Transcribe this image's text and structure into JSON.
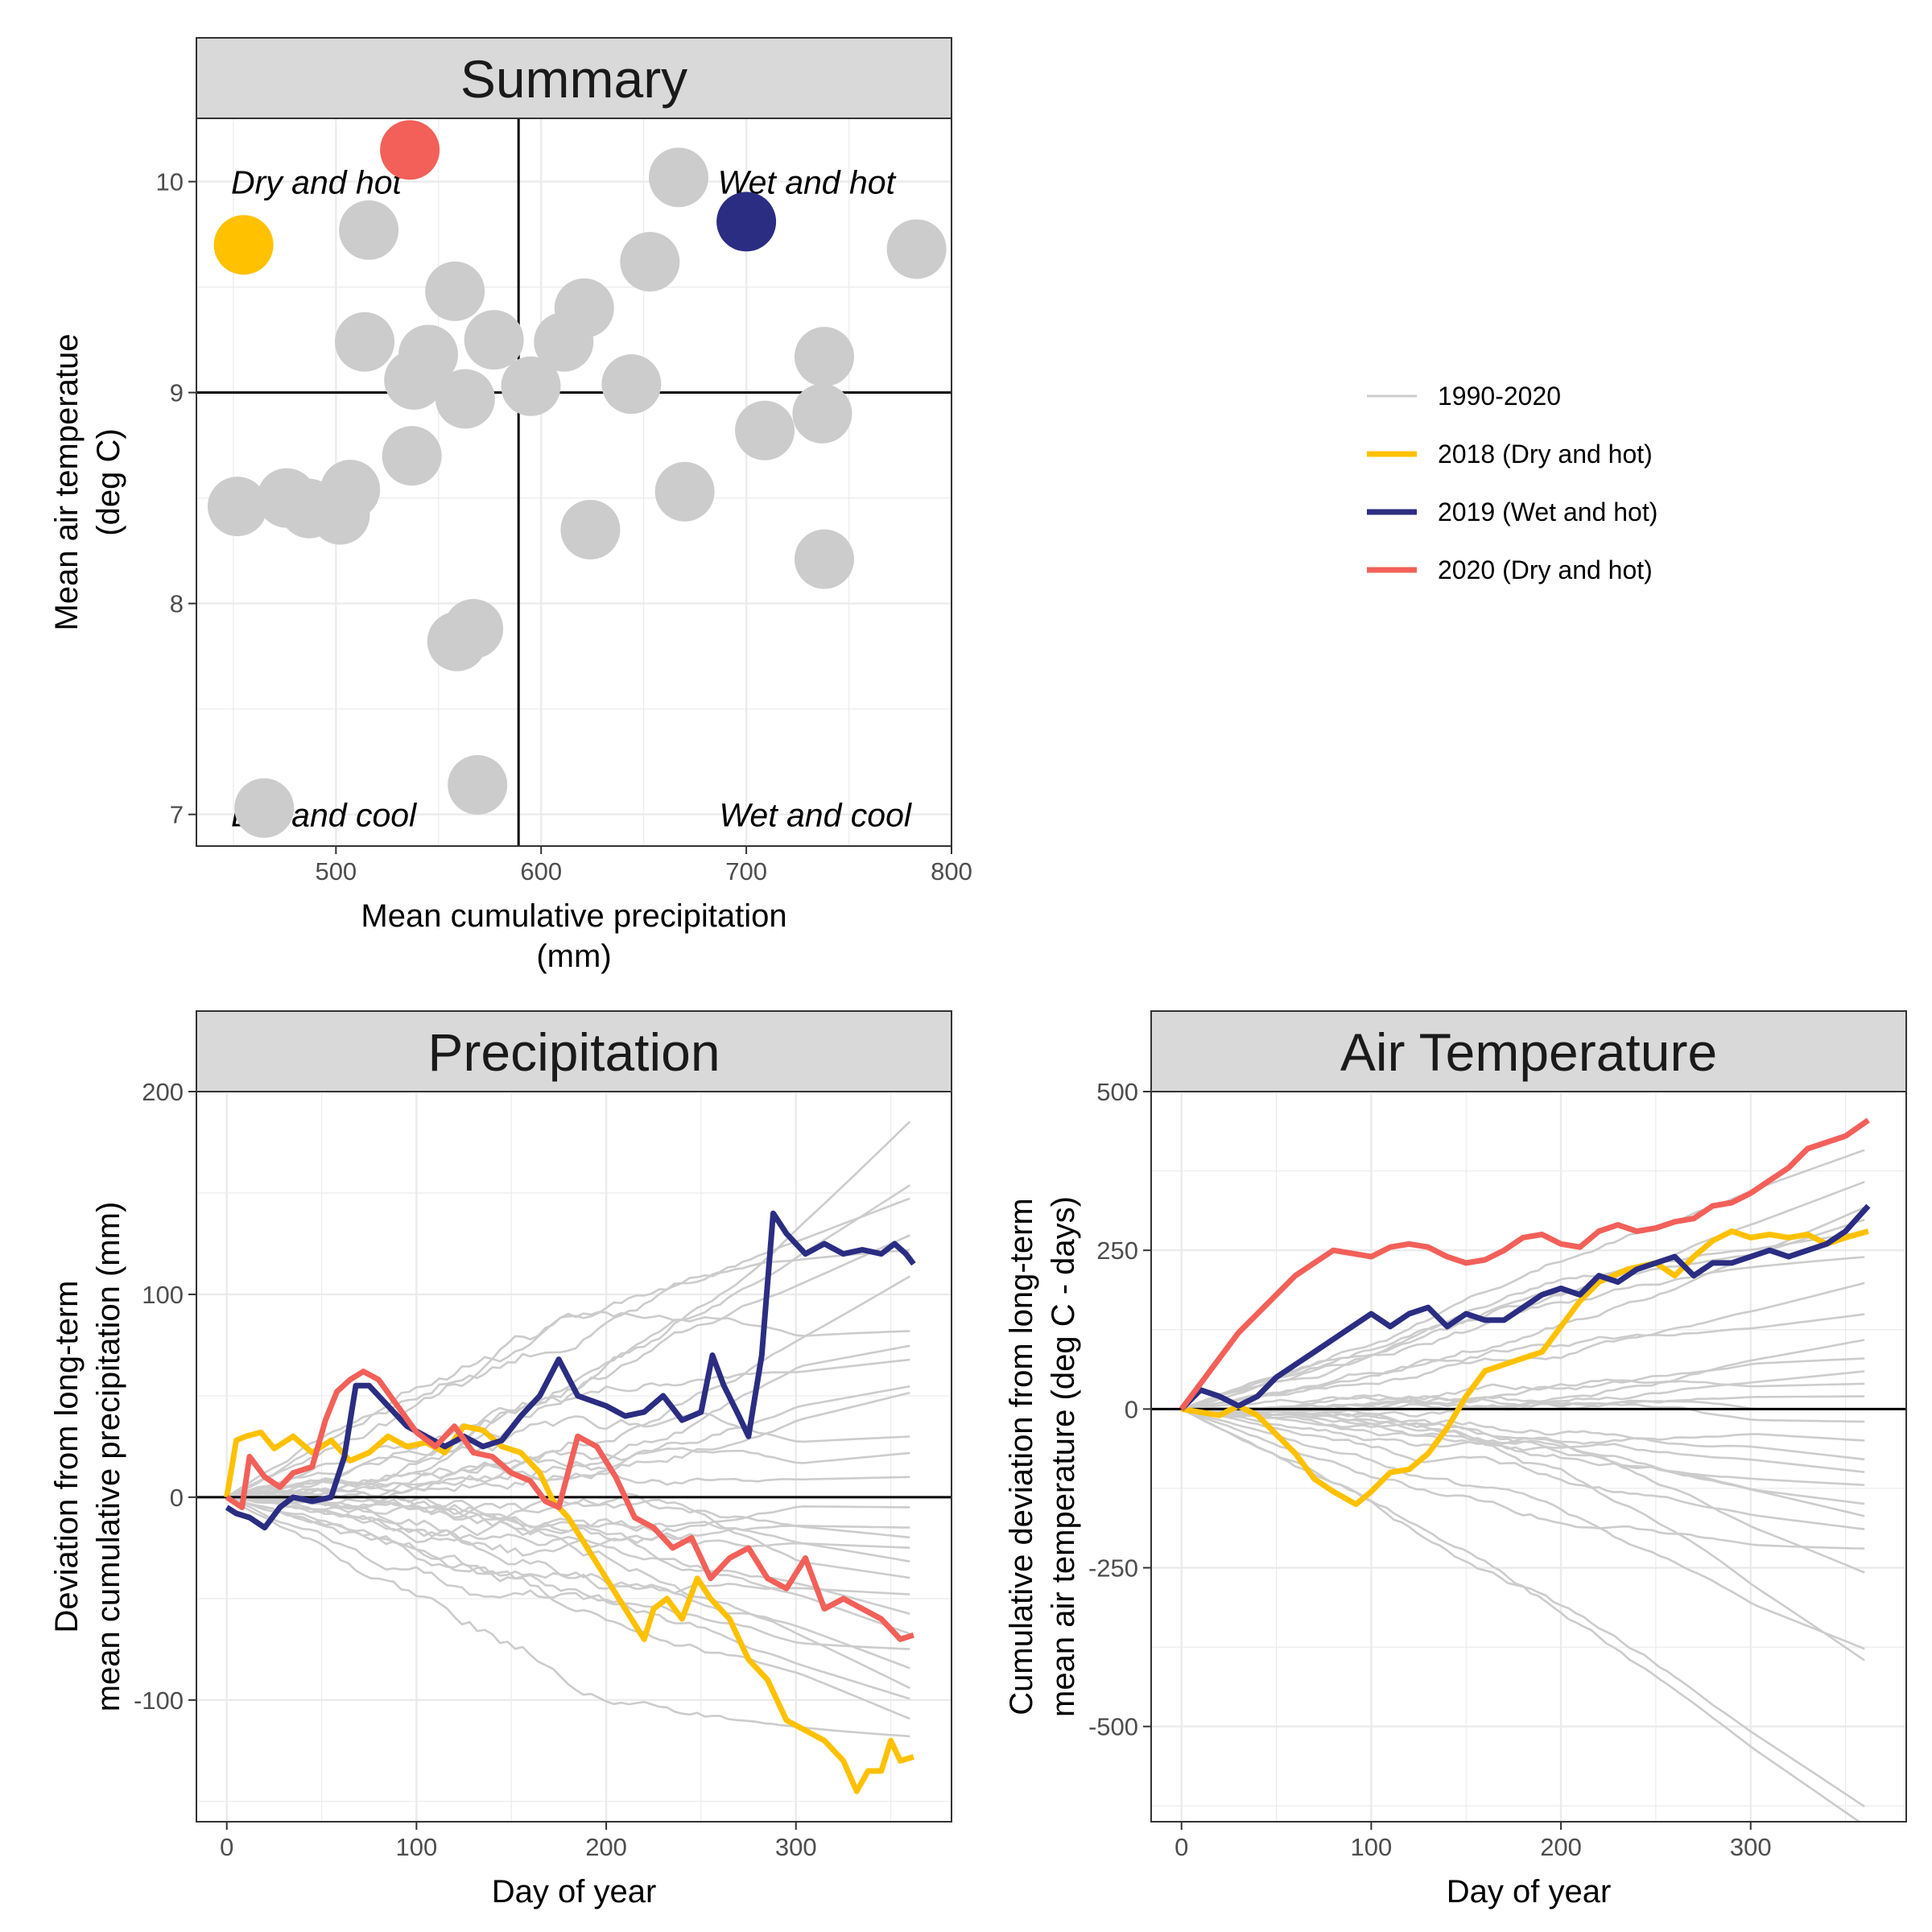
{
  "chart_data": [
    {
      "type": "scatter",
      "title": "Summary",
      "xlabel": [
        "Mean cumulative precipitation",
        "(mm)"
      ],
      "ylabel": [
        "Mean air temperatue",
        "(deg C)"
      ],
      "xlim": [
        432,
        800
      ],
      "ylim": [
        6.85,
        10.3
      ],
      "xticks": [
        500,
        600,
        700,
        800
      ],
      "yticks": [
        7,
        8,
        9,
        10
      ],
      "reference_lines": {
        "x": 589,
        "y": 9
      },
      "quadrant_labels": {
        "top_left": "Dry and hot",
        "top_right": "Wet and hot",
        "bottom_left": "Dry and cool",
        "bottom_right": "Wet and cool"
      },
      "grid": true,
      "points": [
        {
          "x": 516,
          "y": 9.77,
          "group": "1990-2020"
        },
        {
          "x": 667,
          "y": 10.02,
          "group": "1990-2020"
        },
        {
          "x": 783,
          "y": 9.68,
          "group": "1990-2020"
        },
        {
          "x": 653,
          "y": 9.62,
          "group": "1990-2020"
        },
        {
          "x": 558,
          "y": 9.48,
          "group": "1990-2020"
        },
        {
          "x": 621,
          "y": 9.4,
          "group": "1990-2020"
        },
        {
          "x": 514,
          "y": 9.24,
          "group": "1990-2020"
        },
        {
          "x": 545,
          "y": 9.18,
          "group": "1990-2020"
        },
        {
          "x": 577,
          "y": 9.25,
          "group": "1990-2020"
        },
        {
          "x": 611,
          "y": 9.24,
          "group": "1990-2020"
        },
        {
          "x": 738,
          "y": 9.17,
          "group": "1990-2020"
        },
        {
          "x": 538,
          "y": 9.06,
          "group": "1990-2020"
        },
        {
          "x": 595,
          "y": 9.03,
          "group": "1990-2020"
        },
        {
          "x": 644,
          "y": 9.04,
          "group": "1990-2020"
        },
        {
          "x": 563,
          "y": 8.97,
          "group": "1990-2020"
        },
        {
          "x": 737,
          "y": 8.9,
          "group": "1990-2020"
        },
        {
          "x": 709,
          "y": 8.82,
          "group": "1990-2020"
        },
        {
          "x": 537,
          "y": 8.7,
          "group": "1990-2020"
        },
        {
          "x": 670,
          "y": 8.53,
          "group": "1990-2020"
        },
        {
          "x": 507,
          "y": 8.54,
          "group": "1990-2020"
        },
        {
          "x": 476,
          "y": 8.5,
          "group": "1990-2020"
        },
        {
          "x": 487,
          "y": 8.45,
          "group": "1990-2020"
        },
        {
          "x": 452,
          "y": 8.46,
          "group": "1990-2020"
        },
        {
          "x": 502,
          "y": 8.42,
          "group": "1990-2020"
        },
        {
          "x": 624,
          "y": 8.35,
          "group": "1990-2020"
        },
        {
          "x": 738,
          "y": 8.21,
          "group": "1990-2020"
        },
        {
          "x": 567,
          "y": 7.88,
          "group": "1990-2020"
        },
        {
          "x": 559,
          "y": 7.82,
          "group": "1990-2020"
        },
        {
          "x": 569,
          "y": 7.14,
          "group": "1990-2020"
        },
        {
          "x": 465,
          "y": 7.03,
          "group": "1990-2020"
        },
        {
          "x": 455,
          "y": 9.7,
          "group": "2018 (Dry and hot)"
        },
        {
          "x": 700,
          "y": 9.81,
          "group": "2019 (Wet and hot)"
        },
        {
          "x": 536,
          "y": 10.15,
          "group": "2020 (Dry and hot)"
        }
      ]
    },
    {
      "type": "line",
      "title": "Precipitation",
      "xlabel": [
        "Day of year"
      ],
      "ylabel": [
        "Deviation from long-term",
        "mean cumulative precipitation (mm)"
      ],
      "xlim": [
        -16,
        382
      ],
      "ylim": [
        -160,
        200
      ],
      "xticks": [
        0,
        100,
        200,
        300
      ],
      "yticks": [
        -100,
        0,
        100,
        200
      ],
      "reference_lines": {
        "y": 0
      },
      "grid": true,
      "background_series_end_values": [
        187,
        155,
        148,
        130,
        122,
        110,
        82,
        75,
        68,
        55,
        52,
        30,
        22,
        10,
        -5,
        -15,
        -20,
        -25,
        -32,
        -40,
        -48,
        -58,
        -68,
        -75,
        -85,
        -95,
        -100,
        -110,
        -118
      ],
      "series": [
        {
          "name": "2018 (Dry and hot)",
          "x": [
            0,
            5,
            10,
            18,
            25,
            35,
            45,
            55,
            65,
            75,
            85,
            95,
            105,
            115,
            125,
            135,
            145,
            155,
            165,
            172,
            180,
            190,
            200,
            210,
            220,
            225,
            232,
            240,
            248,
            255,
            265,
            275,
            285,
            295,
            305,
            315,
            325,
            332,
            338,
            345,
            350,
            355,
            362
          ],
          "y": [
            0,
            28,
            30,
            32,
            24,
            30,
            22,
            28,
            18,
            22,
            30,
            25,
            27,
            22,
            35,
            33,
            25,
            22,
            12,
            -2,
            -10,
            -25,
            -40,
            -55,
            -70,
            -55,
            -50,
            -60,
            -40,
            -50,
            -60,
            -80,
            -90,
            -110,
            -115,
            -120,
            -130,
            -145,
            -135,
            -135,
            -120,
            -130,
            -128
          ]
        },
        {
          "name": "2019 (Wet and hot)",
          "x": [
            0,
            5,
            12,
            20,
            28,
            35,
            45,
            55,
            62,
            68,
            75,
            85,
            95,
            105,
            115,
            125,
            135,
            145,
            155,
            165,
            175,
            185,
            200,
            210,
            220,
            230,
            240,
            250,
            256,
            262,
            270,
            275,
            282,
            288,
            295,
            305,
            315,
            325,
            335,
            345,
            352,
            358,
            362
          ],
          "y": [
            -5,
            -8,
            -10,
            -15,
            -5,
            0,
            -2,
            0,
            20,
            55,
            55,
            45,
            35,
            30,
            25,
            30,
            25,
            28,
            40,
            50,
            68,
            50,
            45,
            40,
            42,
            50,
            38,
            42,
            70,
            55,
            40,
            30,
            70,
            140,
            130,
            120,
            125,
            120,
            122,
            120,
            125,
            120,
            115
          ]
        },
        {
          "name": "2020 (Dry and hot)",
          "x": [
            0,
            8,
            12,
            20,
            28,
            35,
            45,
            52,
            58,
            65,
            72,
            80,
            90,
            100,
            110,
            120,
            130,
            140,
            150,
            160,
            168,
            175,
            185,
            195,
            205,
            215,
            225,
            235,
            245,
            255,
            265,
            275,
            285,
            295,
            305,
            315,
            325,
            335,
            345,
            355,
            362
          ],
          "y": [
            0,
            -5,
            20,
            10,
            5,
            12,
            15,
            38,
            52,
            58,
            62,
            58,
            45,
            32,
            25,
            35,
            22,
            20,
            12,
            8,
            -2,
            -5,
            30,
            25,
            10,
            -10,
            -15,
            -25,
            -20,
            -40,
            -30,
            -25,
            -40,
            -45,
            -30,
            -55,
            -50,
            -55,
            -60,
            -70,
            -68
          ]
        }
      ]
    },
    {
      "type": "line",
      "title": "Air Temperature",
      "xlabel": [
        "Day of year"
      ],
      "ylabel": [
        "Cumulative deviation from long-term",
        "mean air temperature (deg C - days)"
      ],
      "xlim": [
        -16,
        382
      ],
      "ylim": [
        -650,
        500
      ],
      "xticks": [
        0,
        100,
        200,
        300
      ],
      "yticks": [
        -500,
        -250,
        0,
        250,
        500
      ],
      "reference_lines": {
        "y": 0
      },
      "grid": true,
      "background_series_end_values": [
        410,
        360,
        320,
        300,
        280,
        240,
        200,
        150,
        110,
        80,
        60,
        40,
        20,
        0,
        -20,
        -50,
        -80,
        -100,
        -120,
        -150,
        -170,
        -190,
        -220,
        -260,
        -380,
        -400,
        -630,
        -660
      ],
      "series": [
        {
          "name": "2018 (Dry and hot)",
          "x": [
            0,
            10,
            20,
            30,
            40,
            50,
            60,
            70,
            80,
            92,
            100,
            110,
            120,
            130,
            140,
            150,
            160,
            175,
            190,
            200,
            210,
            220,
            235,
            250,
            260,
            270,
            280,
            290,
            300,
            310,
            320,
            330,
            340,
            350,
            362
          ],
          "y": [
            0,
            -5,
            -10,
            5,
            -10,
            -40,
            -70,
            -110,
            -130,
            -150,
            -130,
            -100,
            -95,
            -70,
            -30,
            20,
            60,
            75,
            90,
            130,
            170,
            200,
            220,
            230,
            210,
            240,
            265,
            280,
            270,
            275,
            270,
            275,
            260,
            270,
            280
          ]
        },
        {
          "name": "2019 (Wet and hot)",
          "x": [
            0,
            10,
            20,
            30,
            40,
            50,
            60,
            70,
            80,
            90,
            100,
            110,
            120,
            130,
            140,
            150,
            160,
            170,
            180,
            190,
            200,
            210,
            220,
            230,
            240,
            250,
            260,
            270,
            280,
            290,
            300,
            310,
            320,
            330,
            340,
            350,
            362
          ],
          "y": [
            0,
            30,
            20,
            5,
            20,
            50,
            70,
            90,
            110,
            130,
            150,
            130,
            150,
            160,
            130,
            150,
            140,
            140,
            160,
            180,
            190,
            180,
            210,
            200,
            220,
            230,
            240,
            210,
            230,
            230,
            240,
            250,
            240,
            250,
            260,
            280,
            320
          ]
        },
        {
          "name": "2020 (Dry and hot)",
          "x": [
            0,
            10,
            20,
            30,
            40,
            50,
            60,
            70,
            80,
            90,
            100,
            110,
            120,
            130,
            140,
            150,
            160,
            170,
            180,
            190,
            200,
            210,
            220,
            230,
            240,
            250,
            260,
            270,
            280,
            290,
            300,
            310,
            320,
            330,
            340,
            350,
            362
          ],
          "y": [
            0,
            40,
            80,
            120,
            150,
            180,
            210,
            230,
            250,
            245,
            240,
            255,
            260,
            255,
            240,
            230,
            235,
            250,
            270,
            275,
            260,
            255,
            280,
            290,
            280,
            285,
            295,
            300,
            320,
            325,
            340,
            360,
            380,
            410,
            420,
            430,
            455
          ]
        }
      ]
    }
  ],
  "legend": {
    "placement": "right of summary panel",
    "items": [
      {
        "label": "1990-2020",
        "color": "#cccccc"
      },
      {
        "label": "2018 (Dry and hot)",
        "color": "#ffc100"
      },
      {
        "label": "2019 (Wet and hot)",
        "color": "#2b2d82"
      },
      {
        "label": "2020 (Dry and hot)",
        "color": "#f26059"
      }
    ]
  },
  "colors": {
    "background_series": "#cccccc",
    "strip": "#d9d9d9",
    "grid": "#ebebeb",
    "axis_text": "#4d4d4d",
    "reference": "#000000"
  }
}
